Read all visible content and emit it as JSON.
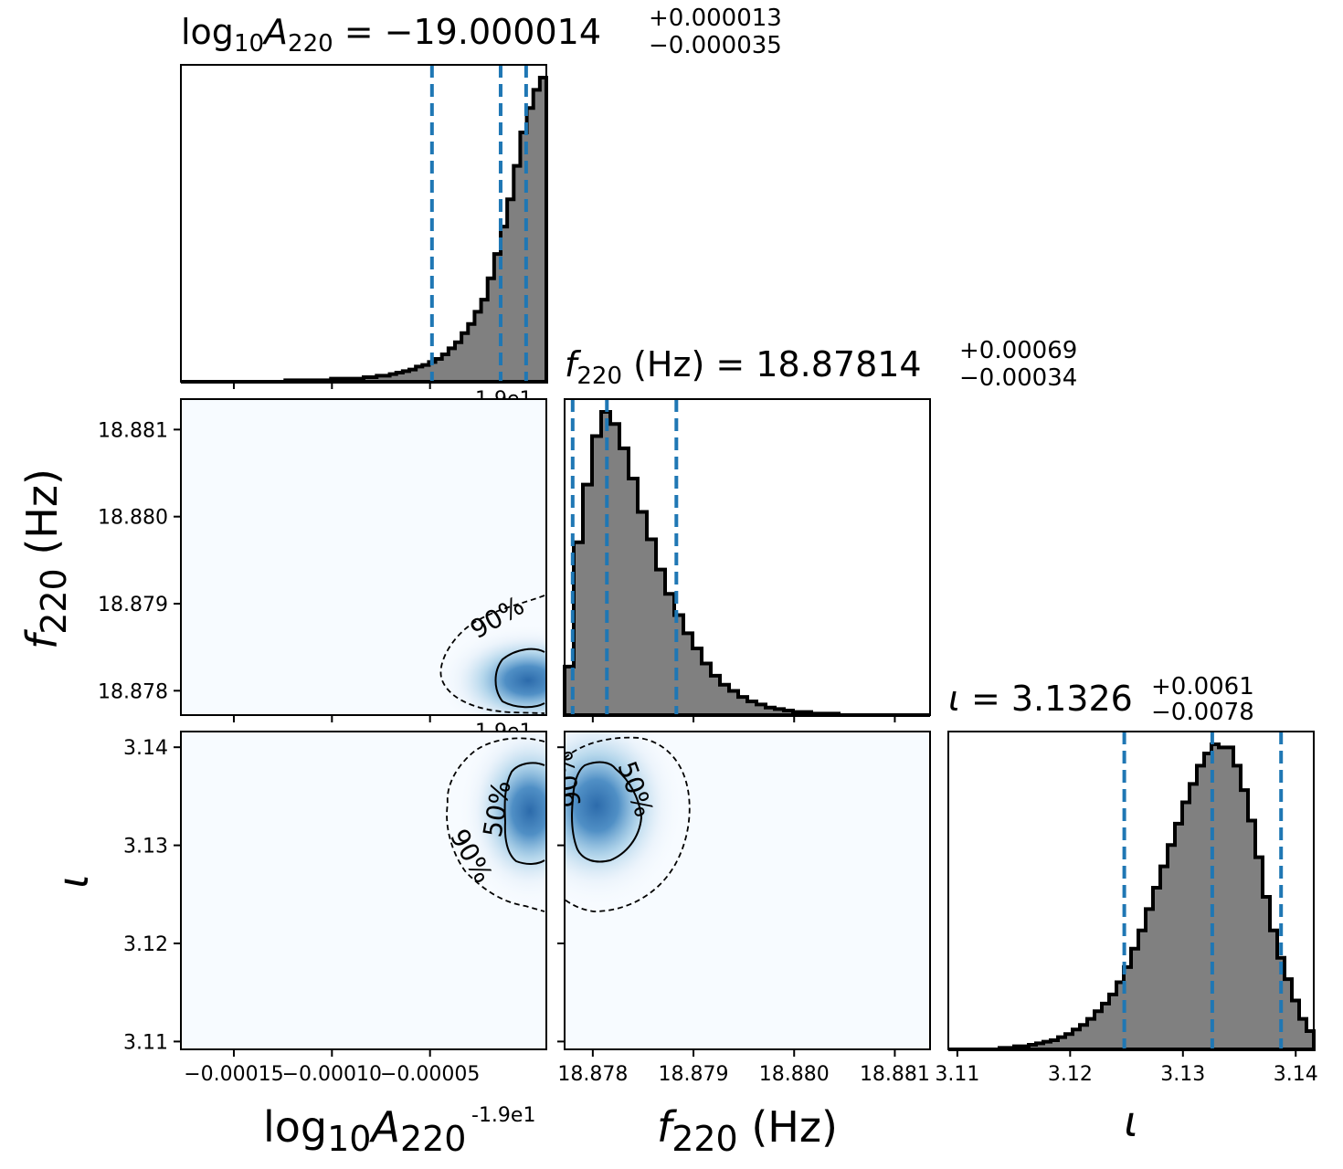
{
  "chart_data": {
    "type": "corner",
    "parameters": [
      {
        "name": "log10_A220",
        "label": "log10A220",
        "offset_label": "-1.9e1",
        "offset_label_partial": "1.9e1",
        "range": [
          -0.000177,
          9.3e-06
        ],
        "ticks": [
          -0.00015,
          -0.0001,
          -5e-05
        ],
        "tick_labels": [
          "−0.00015",
          "−0.00010",
          "−0.00005"
        ],
        "title": {
          "prefix": "log",
          "sub10": "10",
          "sym": "A",
          "sub": "220",
          "eq": " = −19.000014",
          "plus": "+0.000013",
          "minus": "−0.000035"
        },
        "quantiles": [
          -4.9e-05,
          -1.4e-05,
          -1e-06
        ]
      },
      {
        "name": "f220",
        "label": "f220 (Hz)",
        "unit": "(Hz)",
        "range": [
          18.87772,
          18.88135
        ],
        "ticks": [
          18.878,
          18.879,
          18.88,
          18.881
        ],
        "tick_labels": [
          "18.878",
          "18.879",
          "18.880",
          "18.881"
        ],
        "title": {
          "sym": "f",
          "sub": "220",
          "eq": " (Hz) = 18.87814",
          "plus": "+0.00069",
          "minus": "−0.00034"
        },
        "quantiles": [
          18.8778,
          18.87814,
          18.87883
        ]
      },
      {
        "name": "iota",
        "label": "ι",
        "range": [
          3.1092,
          3.1416
        ],
        "ticks": [
          3.11,
          3.12,
          3.13,
          3.14
        ],
        "tick_labels": [
          "3.11",
          "3.12",
          "3.13",
          "3.14"
        ],
        "title": {
          "sym": "ι",
          "eq": " = 3.1326",
          "plus": "+0.0061",
          "minus": "−0.0078"
        },
        "quantiles": [
          3.1248,
          3.1326,
          3.1387
        ]
      }
    ],
    "contour_levels": [
      "50%",
      "90%"
    ],
    "histograms": {
      "log10_A220": [
        0,
        0,
        0,
        0,
        0,
        0,
        0,
        0,
        0,
        0,
        0,
        0,
        0,
        0,
        0,
        0,
        0.5,
        0.5,
        0.5,
        0.5,
        0.5,
        0.5,
        0.5,
        1,
        1,
        1,
        1,
        1,
        1.5,
        1.5,
        2,
        2,
        2.5,
        3,
        3.5,
        4,
        5,
        5.5,
        6.5,
        7.5,
        9,
        11,
        13,
        16,
        19,
        23,
        27,
        34,
        42,
        51,
        60,
        71,
        82,
        90,
        96,
        100
      ],
      "f220": [
        16,
        57,
        76,
        92,
        100,
        96,
        88,
        78,
        67,
        58,
        48,
        40,
        33,
        27,
        22,
        17,
        13,
        10,
        8,
        6,
        4.5,
        3.5,
        2.5,
        2,
        1.5,
        1,
        1,
        0.5,
        0.5,
        0.5,
        0,
        0,
        0,
        0,
        0,
        0,
        0,
        0,
        0,
        0
      ],
      "iota": [
        0,
        0,
        0,
        0,
        0,
        0,
        0,
        0.5,
        0.5,
        1,
        1,
        1.5,
        2,
        2.5,
        3,
        4,
        5,
        6.5,
        8,
        10,
        12.5,
        15,
        18,
        22,
        27,
        33,
        39,
        46,
        53,
        60,
        67,
        74,
        81,
        87,
        93,
        97,
        100,
        99,
        99,
        93,
        85,
        75,
        63,
        50,
        39,
        30,
        23,
        16,
        10,
        6
      ]
    },
    "density_peaks": [
      {
        "x": "log10_A220",
        "y": "f220",
        "cx": -6e-06,
        "cy": 18.87807
      },
      {
        "x": "log10_A220",
        "y": "iota",
        "cx": -6e-06,
        "cy": 3.1329
      },
      {
        "x": "f220",
        "y": "iota",
        "cx": 18.87802,
        "cy": 3.1327
      }
    ],
    "colors": {
      "hist_fill": "#808080",
      "hist_edge": "#000000",
      "quantile_line": "#1f77b4",
      "density_low": "#f7fbff",
      "density_high": "#08519c",
      "contour": "#000000"
    }
  }
}
